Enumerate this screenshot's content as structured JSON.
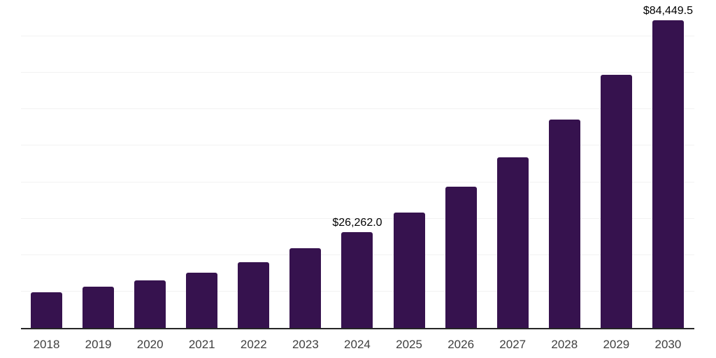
{
  "chart_data": {
    "type": "bar",
    "title": "",
    "xlabel": "",
    "ylabel": "",
    "categories": [
      "2018",
      "2019",
      "2020",
      "2021",
      "2022",
      "2023",
      "2024",
      "2025",
      "2026",
      "2027",
      "2028",
      "2029",
      "2030"
    ],
    "values": [
      9700,
      11300,
      13000,
      15200,
      18100,
      21800,
      26262.0,
      31600,
      38700,
      46900,
      57200,
      69450,
      84449.5
    ],
    "value_labels": [
      {
        "category": "2024",
        "text": "$26,262.0"
      },
      {
        "category": "2030",
        "text": "$84,449.5"
      }
    ],
    "ylim": [
      0,
      90000
    ],
    "y_gridline_step": 10000,
    "grid": true,
    "legend": false,
    "y_axis_tick_labels_visible": false,
    "colors": {
      "bar": "#36124E",
      "axis_line": "#262626",
      "gridline": "#F2F2F2",
      "tick_label": "#404040",
      "value_label": "#000000",
      "background": "#FFFFFF"
    }
  }
}
